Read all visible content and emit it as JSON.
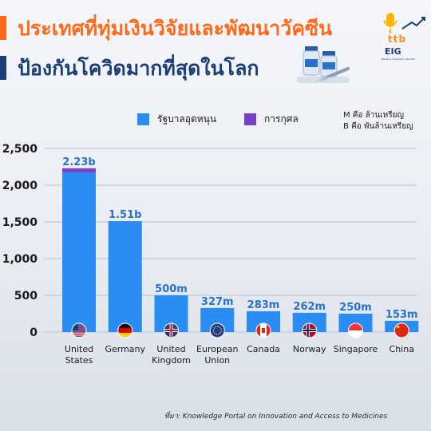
{
  "header": {
    "title_line1": "ประเทศที่ทุ่มเงินวิจัยและพัฒนาวัคซีน",
    "title_line2": "ป้องกันโควิดมากที่สุดในโลก",
    "logo_ttb": "ttb",
    "logo_eig": "EIG",
    "logo_tagline": "Banking Customer's Growth"
  },
  "legend": {
    "gov_label": "รัฐบาลอุดหนุน",
    "charity_label": "การกุศล",
    "unit_m": "M คือ ล้านเหรียญ",
    "unit_b": "B คือ พันล้านเหรียญ"
  },
  "colors": {
    "accent": "#ff6a1a",
    "navy": "#1d3e74",
    "gov": "#2a8df1",
    "charity": "#7a3fc4",
    "value_label": "#2a72c9"
  },
  "source": "ที่มา: Knowledge Portal on Innovation and Access to Medicines",
  "chart_data": {
    "type": "bar",
    "stacked": true,
    "categories": [
      "United States",
      "Germany",
      "United Kingdom",
      "European Union",
      "Canada",
      "Norway",
      "Singapore",
      "China"
    ],
    "category_lines": [
      [
        "United",
        "States"
      ],
      [
        "Germany"
      ],
      [
        "United",
        "Kingdom"
      ],
      [
        "European",
        "Union"
      ],
      [
        "Canada"
      ],
      [
        "Norway"
      ],
      [
        "Singapore"
      ],
      [
        "China"
      ]
    ],
    "flag_icons": [
      "us-flag-icon",
      "germany-flag-icon",
      "uk-flag-icon",
      "eu-flag-icon",
      "canada-flag-icon",
      "norway-flag-icon",
      "singapore-flag-icon",
      "china-flag-icon"
    ],
    "series": [
      {
        "name": "รัฐบาลอุดหนุน",
        "values": [
          2175,
          1510,
          500,
          327,
          283,
          262,
          250,
          153
        ]
      },
      {
        "name": "การกุศล",
        "values": [
          55,
          0,
          0,
          0,
          0,
          0,
          0,
          0
        ]
      }
    ],
    "totals": [
      2230,
      1510,
      500,
      327,
      283,
      262,
      250,
      153
    ],
    "value_labels": [
      "2.23b",
      "1.51b",
      "500m",
      "327m",
      "283m",
      "262m",
      "250m",
      "153m"
    ],
    "yticks": [
      "0",
      "500",
      "1,000",
      "1,500",
      "2,000",
      "2,500"
    ],
    "ytick_values": [
      0,
      500,
      1000,
      1500,
      2000,
      2500
    ],
    "ylim": [
      0,
      2500
    ],
    "grid": true,
    "legend_position": "top"
  }
}
